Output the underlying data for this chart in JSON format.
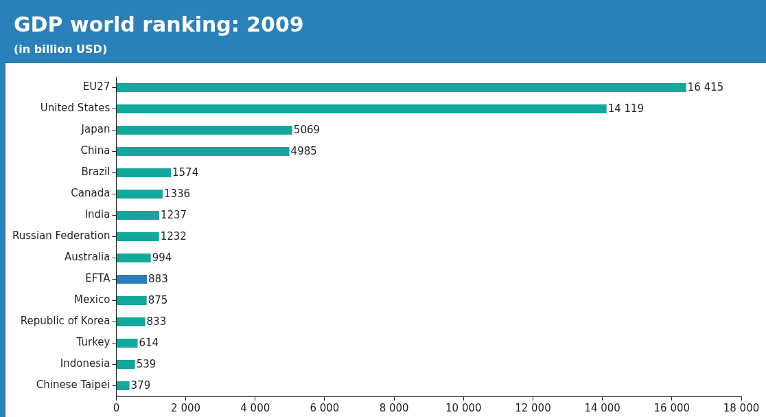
{
  "chart_data": {
    "type": "bar",
    "orientation": "horizontal",
    "title": "GDP world ranking: 2009",
    "subtitle": "(in billion USD)",
    "categories": [
      "EU27",
      "United States",
      "Japan",
      "China",
      "Brazil",
      "Canada",
      "India",
      "Russian Federation",
      "Australia",
      "EFTA",
      "Mexico",
      "Republic of Korea",
      "Turkey",
      "Indonesia",
      "Chinese Taipei"
    ],
    "values": [
      16415,
      14119,
      5069,
      4985,
      1574,
      1336,
      1237,
      1232,
      994,
      883,
      875,
      833,
      614,
      539,
      379
    ],
    "colors": [
      "#12a89d",
      "#12a89d",
      "#12a89d",
      "#12a89d",
      "#12a89d",
      "#12a89d",
      "#12a89d",
      "#12a89d",
      "#12a89d",
      "#2a7fba",
      "#12a89d",
      "#12a89d",
      "#12a89d",
      "#12a89d",
      "#12a89d"
    ],
    "value_labels": [
      "16 415",
      "14 119",
      "5069",
      "4985",
      "1574",
      "1336",
      "1237",
      "1232",
      "994",
      "883",
      "875",
      "833",
      "614",
      "539",
      "379"
    ],
    "xlim": [
      0,
      18000
    ],
    "xticks": [
      0,
      {
        "value": 2000,
        "label": "2 000"
      },
      {
        "value": 4000,
        "label": "4 000"
      },
      {
        "value": 6000,
        "label": "6 000"
      },
      {
        "value": 8000,
        "label": "8 000"
      },
      {
        "value": 10000,
        "label": "10 000"
      },
      {
        "value": 12000,
        "label": "12 000"
      },
      {
        "value": 14000,
        "label": "14 000"
      },
      {
        "value": 16000,
        "label": "16 000"
      },
      {
        "value": 18000,
        "label": "18 000"
      }
    ],
    "grid": false,
    "legend": false
  }
}
